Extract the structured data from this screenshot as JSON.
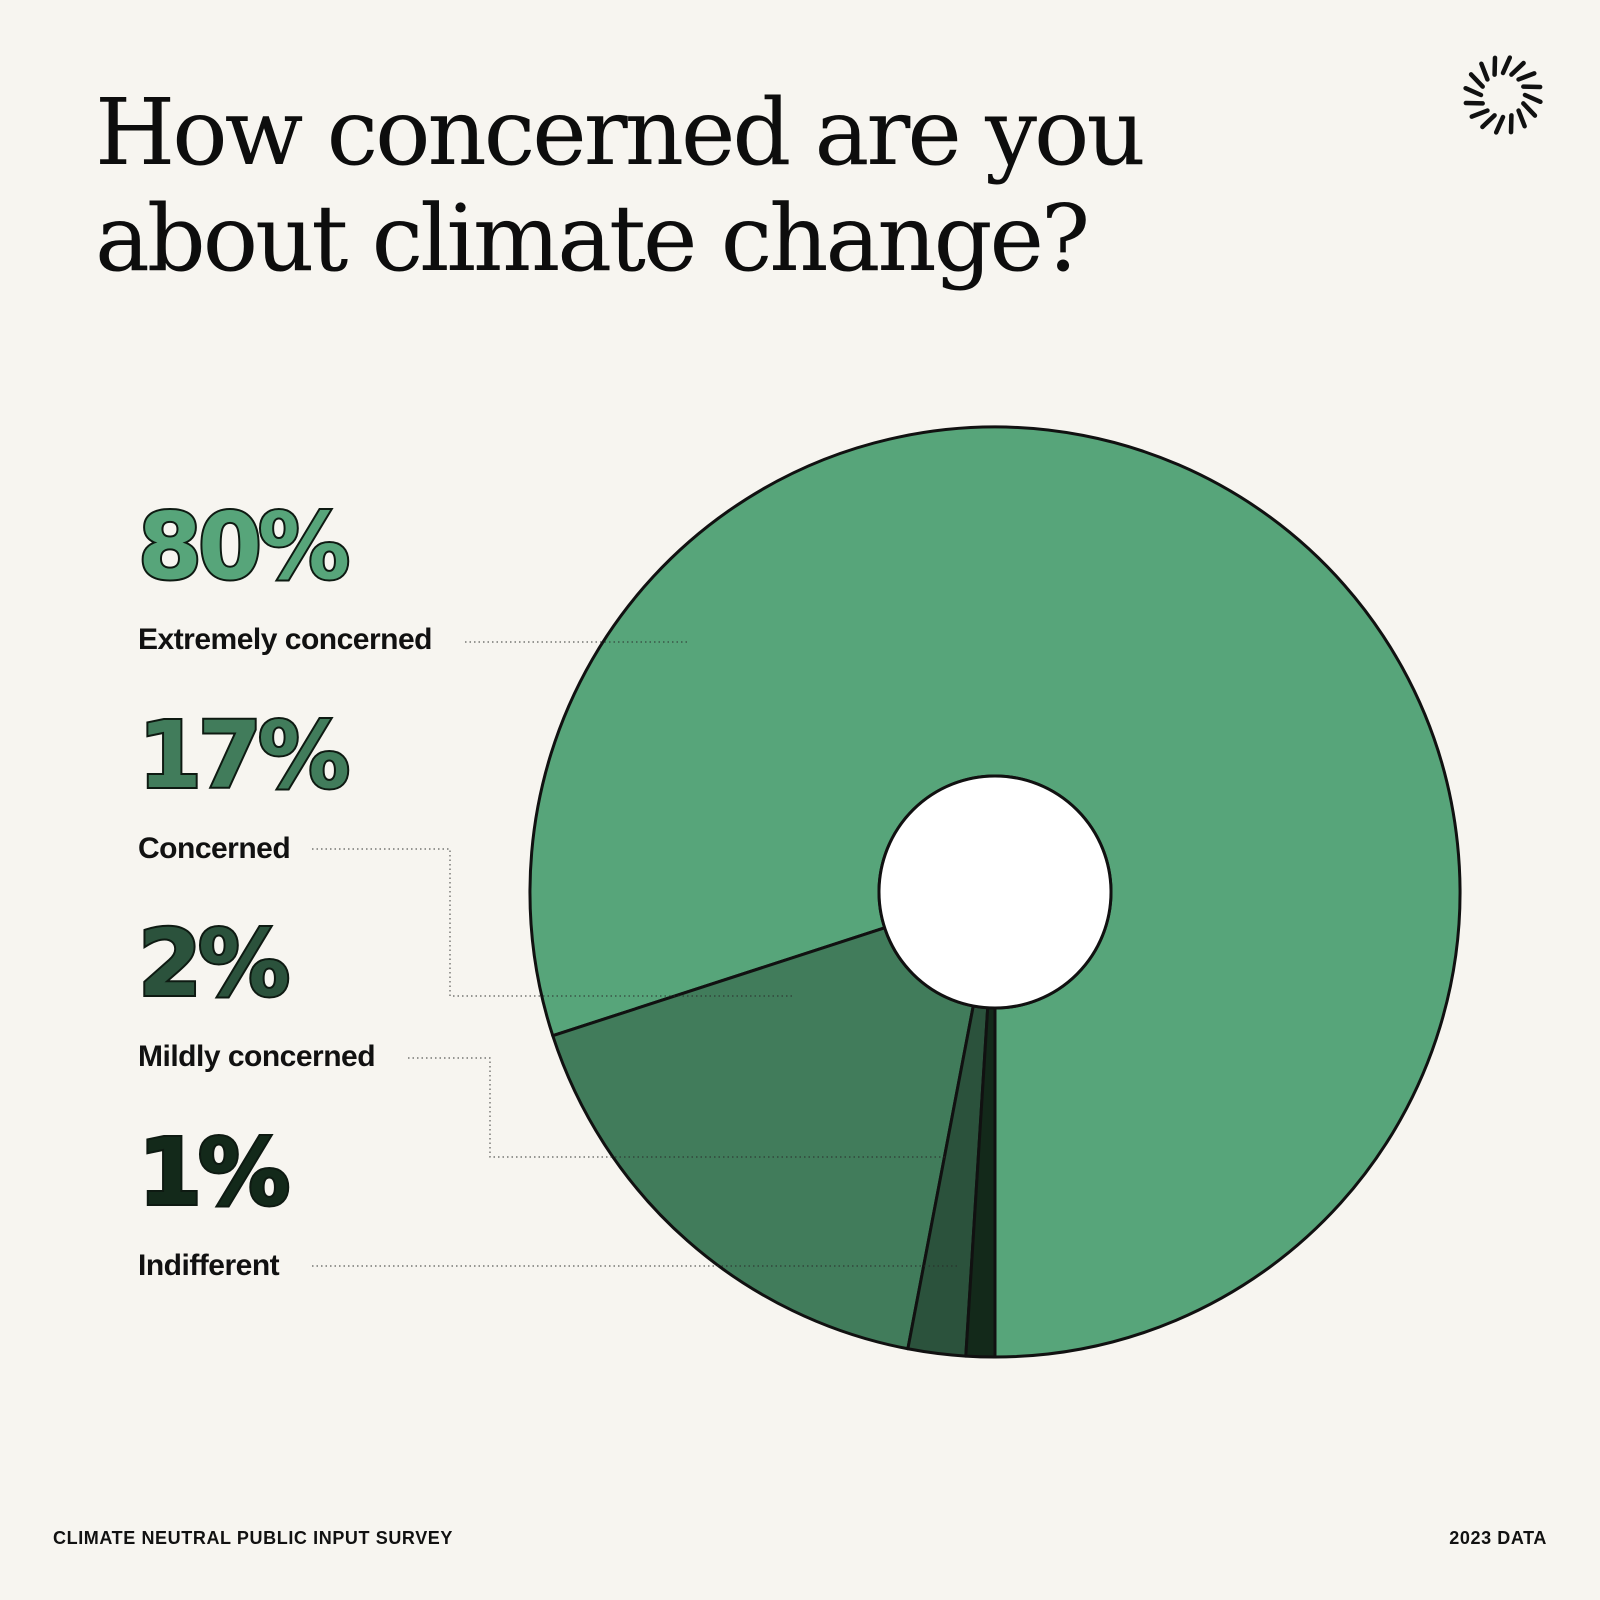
{
  "header": {
    "title_line1": "How concerned are you",
    "title_line2": "about climate change?",
    "logo_icon": "sunburst-icon"
  },
  "footer": {
    "source": "CLIMATE NEUTRAL PUBLIC INPUT SURVEY",
    "year": "2023 DATA"
  },
  "chart_data": {
    "type": "pie",
    "style": "donut",
    "start": "bottom",
    "direction": "counterclockwise",
    "slices": [
      {
        "label": "Extremely concerned",
        "value": 80,
        "value_label": "80%",
        "color": "#57a57a"
      },
      {
        "label": "Concerned",
        "value": 17,
        "value_label": "17%",
        "color": "#417c5b"
      },
      {
        "label": "Mildly concerned",
        "value": 2,
        "value_label": "2%",
        "color": "#2b523c"
      },
      {
        "label": "Indifferent",
        "value": 1,
        "value_label": "1%",
        "color": "#13291a"
      }
    ],
    "legend_placement": "left"
  }
}
